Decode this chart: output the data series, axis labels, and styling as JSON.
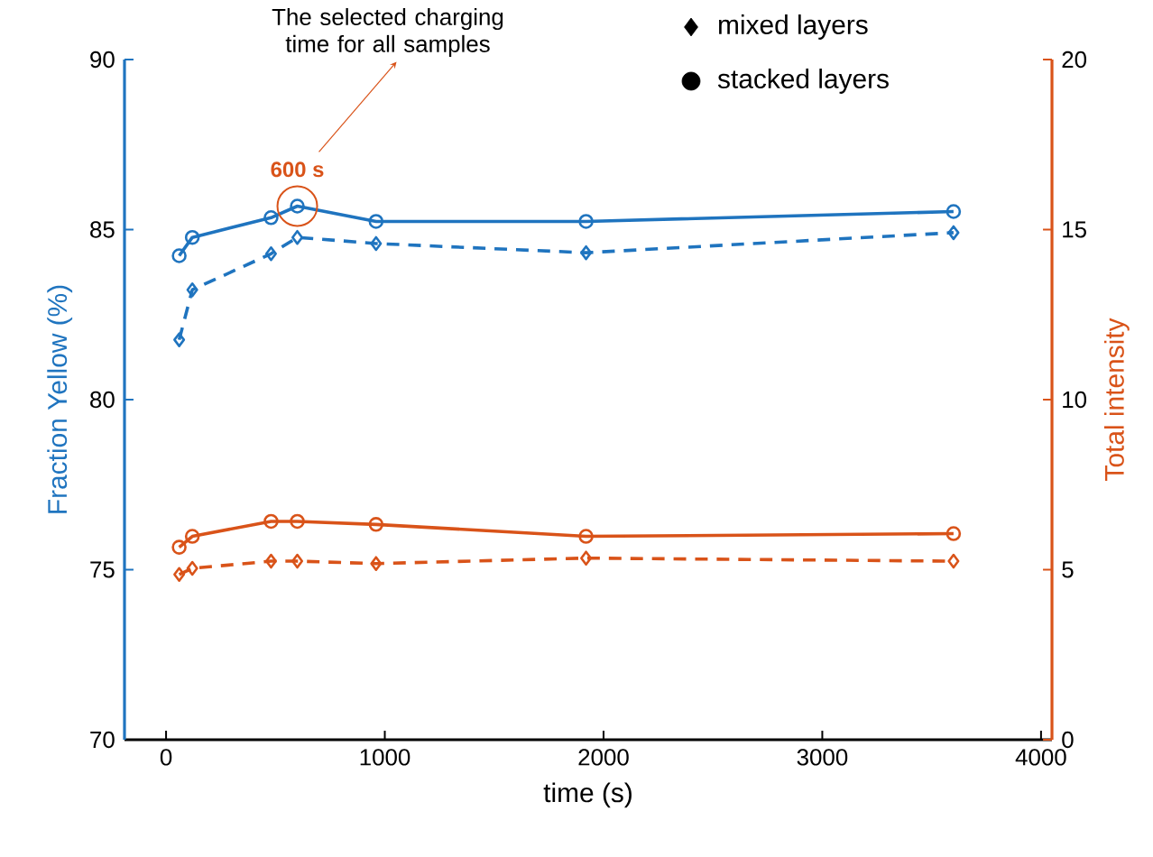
{
  "chart_data": {
    "type": "line",
    "xlabel": "time (s)",
    "ylabel": "Fraction Yellow (%)",
    "y2label": "Total intensity",
    "x": [
      60,
      120,
      480,
      600,
      960,
      1920,
      3600
    ],
    "series": [
      {
        "color": "#1f74bf",
        "marker": "diamond",
        "line_style": "dashed",
        "values": [
          81.76,
          83.23,
          84.29,
          84.77,
          84.59,
          84.32,
          84.91
        ]
      },
      {
        "color": "#1f74bf",
        "marker": "circle",
        "line_style": "solid",
        "values": [
          84.23,
          84.77,
          85.35,
          85.69,
          85.24,
          85.24,
          85.53
        ]
      },
      {
        "color": "#d95319",
        "marker": "diamond",
        "line_style": "dashed",
        "axis": "y2",
        "values": [
          4.86,
          5.04,
          5.25,
          5.25,
          5.18,
          5.34,
          5.25
        ]
      },
      {
        "color": "#d95319",
        "marker": "circle",
        "line_style": "solid",
        "axis": "y2",
        "values": [
          5.66,
          5.98,
          6.42,
          6.42,
          6.33,
          5.98,
          6.06
        ]
      }
    ],
    "xlim": [
      -190,
      4050
    ],
    "xticks": [
      0,
      1000,
      2000,
      3000,
      4000
    ],
    "ylim": [
      70,
      90
    ],
    "yticks": [
      70,
      75,
      80,
      85,
      90
    ],
    "y2lim": [
      0,
      20
    ],
    "y2ticks": [
      0,
      5,
      10,
      15,
      20
    ],
    "grid": false,
    "annotations": [
      {
        "text": "600 s",
        "x": 600,
        "y": 85.69
      },
      "The selected charging time for all samples",
      "mixed layers",
      "stacked layers"
    ]
  }
}
